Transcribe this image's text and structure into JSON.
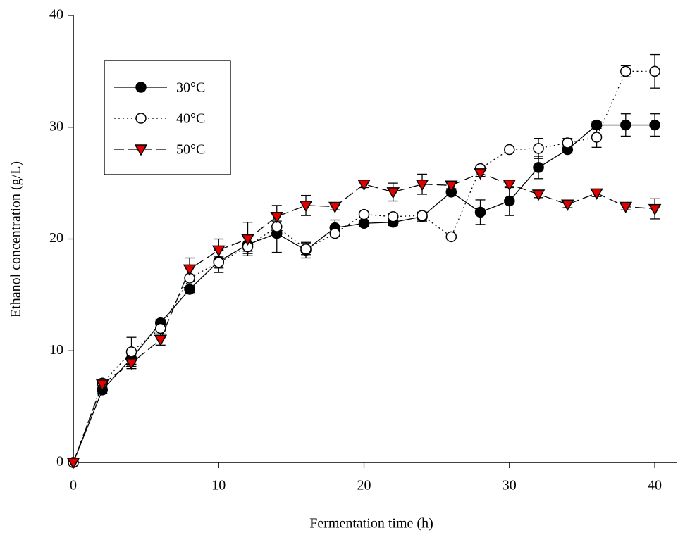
{
  "chart_data": {
    "type": "line",
    "x_label": "Fermentation time (h)",
    "y_label": "Ethanol concentration (g/L)",
    "x": [
      0,
      2,
      4,
      6,
      8,
      10,
      12,
      14,
      16,
      18,
      20,
      22,
      24,
      26,
      28,
      30,
      32,
      34,
      36,
      38,
      40
    ],
    "series": [
      {
        "name": "30°C",
        "color": "#000000",
        "marker": "circle",
        "marker_fill": "#000000",
        "line_style": "solid",
        "values": [
          0,
          6.5,
          9.3,
          12.5,
          15.5,
          18,
          19.5,
          20.5,
          19,
          21,
          21.4,
          21.5,
          22,
          24.2,
          22.4,
          23.4,
          26.4,
          28,
          30.2,
          30.2,
          30.2
        ],
        "errors": [
          0,
          0.3,
          0.5,
          0.3,
          0.3,
          1.0,
          0.8,
          1.7,
          0.7,
          0.7,
          0.3,
          0.3,
          0.4,
          0.3,
          1.1,
          1.3,
          1.0,
          0.3,
          0.3,
          1.0,
          1.0
        ]
      },
      {
        "name": "40°C",
        "color": "#000000",
        "marker": "circle",
        "marker_fill": "#ffffff",
        "line_style": "dotted",
        "values": [
          0,
          7.1,
          9.9,
          12,
          16.5,
          17.9,
          19.3,
          21.1,
          19.1,
          20.5,
          22.2,
          22,
          22.1,
          20.2,
          26.3,
          28,
          28.1,
          28.6,
          29.1,
          35,
          35
        ],
        "errors": [
          0,
          0.2,
          1.3,
          0.3,
          0.3,
          0.5,
          0.4,
          0.5,
          0.5,
          0.3,
          0.2,
          0.3,
          0.3,
          0.2,
          0.2,
          0.2,
          0.9,
          0.4,
          0.9,
          0.5,
          1.5
        ]
      },
      {
        "name": "50°C",
        "color": "#000000",
        "marker": "triangle-down",
        "marker_fill": "#e00000",
        "line_style": "dashed",
        "values": [
          0,
          7,
          8.9,
          11,
          17.3,
          19,
          20,
          22,
          23,
          22.9,
          24.9,
          24.2,
          24.9,
          24.8,
          25.9,
          24.9,
          24,
          23.1,
          24.1,
          22.9,
          22.7
        ],
        "errors": [
          0,
          0.3,
          0.5,
          0.5,
          1.0,
          1.0,
          1.5,
          1.0,
          0.9,
          0.3,
          0.3,
          0.8,
          0.9,
          0.3,
          0.3,
          0.3,
          0.3,
          0.3,
          0.3,
          0.3,
          0.9
        ]
      }
    ],
    "xlim": [
      0,
      41.5
    ],
    "ylim": [
      0,
      40
    ],
    "xticks": [
      0,
      10,
      20,
      30,
      40
    ],
    "yticks": [
      0,
      10,
      20,
      30,
      40
    ],
    "legend_position": "upper left"
  }
}
